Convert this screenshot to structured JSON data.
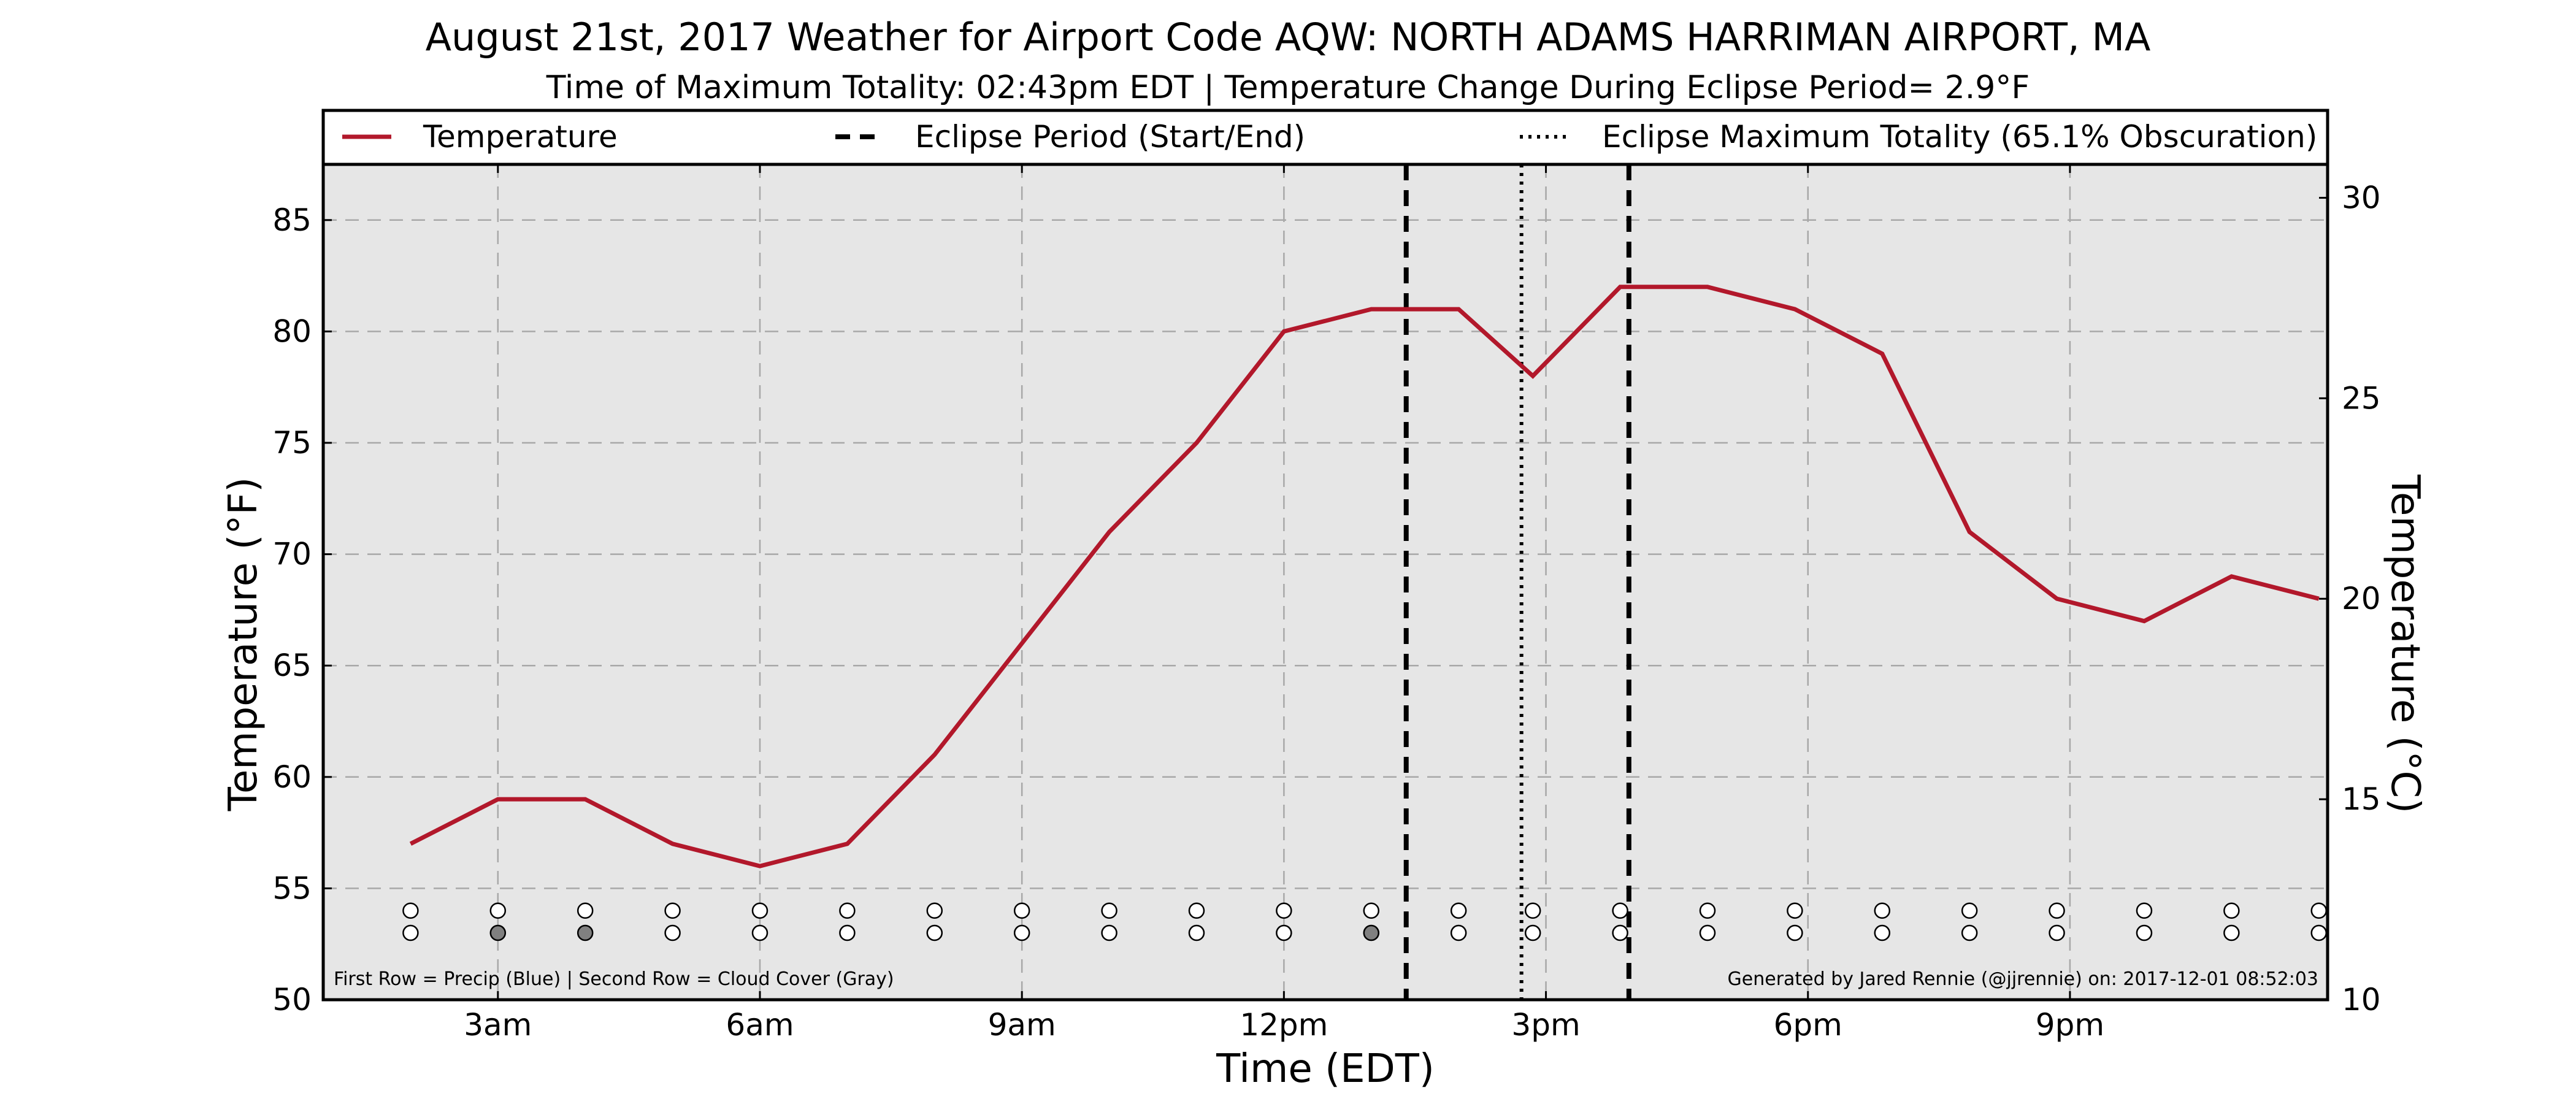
{
  "chart_data": {
    "type": "line",
    "title": "August 21st, 2017 Weather for Airport Code AQW: NORTH ADAMS HARRIMAN AIRPORT, MA",
    "subtitle": "Time of Maximum Totality: 02:43pm EDT | Temperature Change During Eclipse Period= 2.9$^\\circ$F",
    "subtitle_display": "Time of Maximum Totality: 02:43pm EDT | Temperature Change During Eclipse Period= 2.9°F",
    "xlabel": "Time (EDT)",
    "ylabel": "Temperature ($^\\circ$F)",
    "ylabel_display": "Temperature (°F)",
    "ylabel_right_display": "Temperature (°C)",
    "xlim": [
      1,
      23.95
    ],
    "ylim": [
      50,
      87.5
    ],
    "y_ticks": [
      50,
      55,
      60,
      65,
      70,
      75,
      80,
      85
    ],
    "y_right_ticks": [
      10,
      15,
      20,
      25,
      30
    ],
    "x_ticks": [
      {
        "x": 3,
        "label": "3am"
      },
      {
        "x": 6,
        "label": "6am"
      },
      {
        "x": 9,
        "label": "9am"
      },
      {
        "x": 12,
        "label": "12pm"
      },
      {
        "x": 15,
        "label": "3pm"
      },
      {
        "x": 18,
        "label": "6pm"
      },
      {
        "x": 21,
        "label": "9pm"
      }
    ],
    "grid": true,
    "legend_position": "top",
    "series": [
      {
        "name": "Temperature",
        "color": "#b2182b",
        "x": [
          2,
          3,
          4,
          5,
          6,
          7,
          8,
          9,
          10,
          11,
          12,
          13,
          14,
          14.85,
          15.85,
          16.85,
          17.85,
          18.85,
          19.85,
          20.85,
          21.85,
          22.85,
          23.85
        ],
        "y": [
          57,
          59,
          59,
          57,
          56,
          57,
          61,
          66,
          71,
          75,
          80,
          81,
          81,
          78,
          82,
          82,
          81,
          79,
          71,
          68,
          67,
          69,
          68
        ]
      }
    ],
    "eclipse": {
      "legend_start_end": "Eclipse Period (Start/End)",
      "legend_max": "Eclipse Maximum Totality (65.1% Obscuration)",
      "start_x": 13.4,
      "max_x": 14.72,
      "end_x": 15.95
    },
    "markers": {
      "x": [
        2,
        3,
        4,
        5,
        6,
        7,
        8,
        9,
        10,
        11,
        12,
        13,
        14,
        14.85,
        15.85,
        16.85,
        17.85,
        18.85,
        19.85,
        20.85,
        21.85,
        22.85,
        23.85
      ],
      "row1_y": 54,
      "row2_y": 53,
      "precip_filled": [],
      "cloud_filled": [
        3,
        4,
        13
      ],
      "fill_color": "#808080",
      "empty_color": "#ffffff"
    },
    "footnote_left": "First Row = Precip (Blue) | Second Row = Cloud Cover (Gray)",
    "footnote_right": "Generated by Jared Rennie (@jjrennie) on: 2017-12-01 08:52:03"
  }
}
